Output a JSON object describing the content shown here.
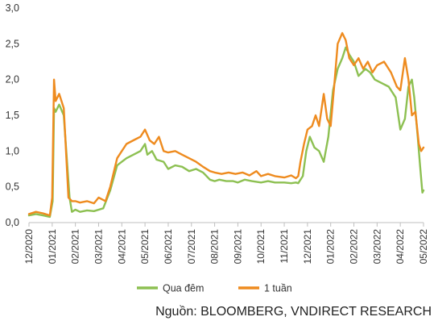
{
  "chart_data": {
    "type": "line",
    "ylim": [
      0,
      3.0
    ],
    "y_ticks": [
      "0,0",
      "0,5",
      "1,0",
      "1,5",
      "2,0",
      "2,5",
      "3,0"
    ],
    "x_ticks": [
      "12/2020",
      "01/2021",
      "02/2021",
      "03/2021",
      "04/2021",
      "05/2021",
      "06/2021",
      "07/2021",
      "08/2021",
      "09/2021",
      "10/2021",
      "11/2021",
      "12/2021",
      "01/2022",
      "02/2022",
      "03/2022",
      "04/2022",
      "05/2022"
    ],
    "grid": false,
    "legend_position": "bottom",
    "series": [
      {
        "name": "Qua đêm",
        "color": "#8DC052",
        "x": [
          0,
          0.3,
          0.6,
          0.9,
          1.02,
          1.08,
          1.15,
          1.3,
          1.5,
          1.75,
          1.85,
          2.0,
          2.2,
          2.5,
          2.8,
          3.2,
          3.5,
          3.8,
          4.0,
          4.2,
          4.5,
          4.8,
          5.0,
          5.1,
          5.3,
          5.5,
          5.8,
          6.0,
          6.3,
          6.6,
          6.9,
          7.2,
          7.5,
          7.8,
          8.0,
          8.2,
          8.5,
          8.8,
          9.0,
          9.3,
          9.6,
          10.0,
          10.3,
          10.6,
          11.0,
          11.3,
          11.5,
          11.6,
          11.7,
          11.8,
          11.95,
          12.1,
          12.3,
          12.5,
          12.7,
          12.9,
          13.1,
          13.3,
          13.5,
          13.65,
          13.8,
          14.0,
          14.2,
          14.35,
          14.5,
          14.7,
          14.9,
          15.2,
          15.5,
          15.8,
          16.0,
          16.2,
          16.35,
          16.5,
          16.6,
          16.75,
          16.85,
          16.95,
          17.0
        ],
        "values": [
          0.1,
          0.12,
          0.1,
          0.08,
          0.3,
          1.6,
          1.55,
          1.65,
          1.5,
          0.35,
          0.15,
          0.18,
          0.15,
          0.17,
          0.16,
          0.2,
          0.45,
          0.8,
          0.85,
          0.9,
          0.95,
          1.0,
          1.1,
          0.95,
          1.0,
          0.88,
          0.85,
          0.75,
          0.8,
          0.78,
          0.72,
          0.75,
          0.7,
          0.6,
          0.58,
          0.6,
          0.58,
          0.58,
          0.56,
          0.6,
          0.58,
          0.56,
          0.58,
          0.56,
          0.56,
          0.55,
          0.56,
          0.55,
          0.6,
          0.65,
          1.0,
          1.2,
          1.05,
          1.0,
          0.85,
          1.2,
          1.85,
          2.15,
          2.3,
          2.45,
          2.35,
          2.25,
          2.05,
          2.1,
          2.15,
          2.1,
          2.0,
          1.95,
          1.9,
          1.75,
          1.3,
          1.45,
          1.9,
          2.0,
          1.75,
          1.2,
          0.8,
          0.42,
          0.45
        ]
      },
      {
        "name": "1 tuần",
        "color": "#EE8B1F",
        "x": [
          0,
          0.3,
          0.6,
          0.9,
          1.0,
          1.08,
          1.15,
          1.3,
          1.5,
          1.7,
          1.85,
          2.0,
          2.2,
          2.5,
          2.8,
          3.0,
          3.3,
          3.5,
          3.8,
          4.0,
          4.2,
          4.5,
          4.8,
          5.0,
          5.2,
          5.4,
          5.6,
          5.8,
          6.0,
          6.3,
          6.6,
          6.9,
          7.2,
          7.5,
          7.8,
          8.0,
          8.3,
          8.6,
          8.9,
          9.2,
          9.5,
          9.8,
          10.0,
          10.3,
          10.6,
          11.0,
          11.3,
          11.5,
          11.6,
          11.7,
          11.85,
          12.0,
          12.2,
          12.35,
          12.5,
          12.7,
          12.85,
          13.0,
          13.15,
          13.3,
          13.5,
          13.65,
          13.8,
          14.0,
          14.2,
          14.4,
          14.6,
          14.8,
          15.0,
          15.3,
          15.6,
          15.85,
          16.0,
          16.2,
          16.35,
          16.5,
          16.65,
          16.8,
          16.9,
          17.0
        ],
        "values": [
          0.12,
          0.15,
          0.13,
          0.1,
          0.35,
          2.0,
          1.7,
          1.8,
          1.6,
          0.35,
          0.3,
          0.3,
          0.28,
          0.3,
          0.27,
          0.35,
          0.3,
          0.5,
          0.9,
          1.0,
          1.1,
          1.15,
          1.2,
          1.3,
          1.15,
          1.1,
          1.2,
          1.0,
          0.98,
          1.0,
          0.95,
          0.9,
          0.85,
          0.78,
          0.72,
          0.7,
          0.68,
          0.7,
          0.68,
          0.7,
          0.66,
          0.72,
          0.65,
          0.68,
          0.65,
          0.63,
          0.66,
          0.62,
          0.65,
          0.85,
          1.1,
          1.3,
          1.35,
          1.5,
          1.35,
          1.8,
          1.45,
          1.35,
          1.9,
          2.5,
          2.65,
          2.55,
          2.3,
          2.2,
          2.3,
          2.15,
          2.25,
          2.1,
          2.2,
          2.25,
          2.1,
          1.9,
          1.85,
          2.3,
          2.0,
          1.5,
          1.55,
          1.1,
          1.0,
          1.05
        ]
      }
    ]
  },
  "source": "Nguồn: BLOOMBERG, VNDIRECT RESEARCH"
}
